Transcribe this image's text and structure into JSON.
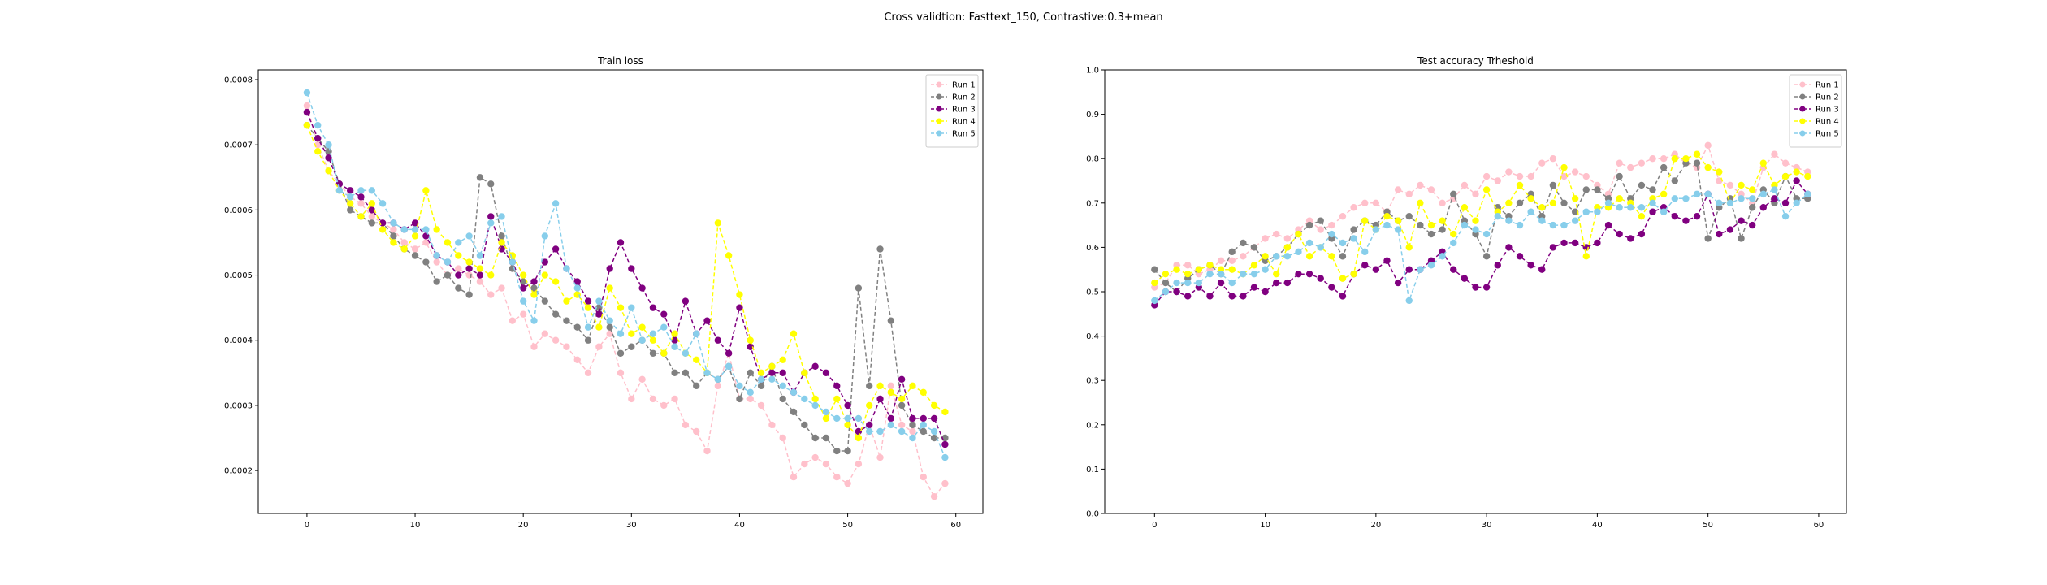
{
  "figure": {
    "suptitle": "Cross validtion: Fasttext_150, Contrastive:0.3+mean"
  },
  "chart_data": [
    {
      "type": "line",
      "title": "Train loss",
      "xlabel": "",
      "ylabel": "",
      "xlim": [
        -4.5,
        62.5
      ],
      "ylim": [
        0.000134,
        0.000815
      ],
      "xticks": [
        0,
        10,
        20,
        30,
        40,
        50,
        60
      ],
      "yticks": [
        0.0002,
        0.0003,
        0.0004,
        0.0005,
        0.0006,
        0.0007,
        0.0008
      ],
      "ytick_labels": [
        "0.0002",
        "0.0003",
        "0.0004",
        "0.0005",
        "0.0006",
        "0.0007",
        "0.0008"
      ],
      "legend_position": "top-right",
      "x": [
        0,
        1,
        2,
        3,
        4,
        5,
        6,
        7,
        8,
        9,
        10,
        11,
        12,
        13,
        14,
        15,
        16,
        17,
        18,
        19,
        20,
        21,
        22,
        23,
        24,
        25,
        26,
        27,
        28,
        29,
        30,
        31,
        32,
        33,
        34,
        35,
        36,
        37,
        38,
        39,
        40,
        41,
        42,
        43,
        44,
        45,
        46,
        47,
        48,
        49,
        50,
        51,
        52,
        53,
        54,
        55,
        56,
        57,
        58,
        59
      ],
      "series": [
        {
          "name": "Run 1",
          "color": "#ffc0cb",
          "values": [
            0.00076,
            0.0007,
            0.00066,
            0.00064,
            0.00062,
            0.00061,
            0.00059,
            0.00058,
            0.00057,
            0.00055,
            0.00054,
            0.00055,
            0.00052,
            0.0005,
            0.00051,
            0.0005,
            0.00049,
            0.00047,
            0.00048,
            0.00043,
            0.00044,
            0.00039,
            0.00041,
            0.0004,
            0.00039,
            0.00037,
            0.00035,
            0.00039,
            0.00041,
            0.00035,
            0.00031,
            0.00034,
            0.00031,
            0.0003,
            0.00031,
            0.00027,
            0.00026,
            0.00023,
            0.00033,
            0.00038,
            0.00031,
            0.00031,
            0.0003,
            0.00027,
            0.00025,
            0.00019,
            0.00021,
            0.00022,
            0.00021,
            0.00019,
            0.00018,
            0.00021,
            0.00027,
            0.00022,
            0.00033,
            0.00027,
            0.00026,
            0.00019,
            0.00016,
            0.00018
          ]
        },
        {
          "name": "Run 2",
          "color": "#808080",
          "values": [
            0.00073,
            0.00071,
            0.00069,
            0.00064,
            0.0006,
            0.00059,
            0.00058,
            0.00058,
            0.00056,
            0.00054,
            0.00053,
            0.00052,
            0.00049,
            0.0005,
            0.00048,
            0.00047,
            0.00065,
            0.00064,
            0.00056,
            0.00051,
            0.00049,
            0.00048,
            0.00046,
            0.00044,
            0.00043,
            0.00042,
            0.0004,
            0.00045,
            0.00042,
            0.00038,
            0.00039,
            0.0004,
            0.00038,
            0.00038,
            0.00035,
            0.00035,
            0.00033,
            0.00035,
            0.00034,
            0.00036,
            0.00031,
            0.00035,
            0.00033,
            0.00036,
            0.00031,
            0.00029,
            0.00027,
            0.00025,
            0.00025,
            0.00023,
            0.00023,
            0.00048,
            0.00033,
            0.00054,
            0.00043,
            0.0003,
            0.00027,
            0.00026,
            0.00025,
            0.00025
          ]
        },
        {
          "name": "Run 3",
          "color": "#800080",
          "values": [
            0.00075,
            0.00071,
            0.00068,
            0.00064,
            0.00063,
            0.00062,
            0.0006,
            0.00058,
            0.00058,
            0.00057,
            0.00058,
            0.00056,
            0.00053,
            0.00052,
            0.0005,
            0.00051,
            0.0005,
            0.00059,
            0.00054,
            0.00052,
            0.00048,
            0.00049,
            0.00052,
            0.00054,
            0.00051,
            0.00049,
            0.00046,
            0.00044,
            0.00051,
            0.00055,
            0.00051,
            0.00048,
            0.00045,
            0.00044,
            0.0004,
            0.00046,
            0.00041,
            0.00043,
            0.0004,
            0.00038,
            0.00045,
            0.00039,
            0.00034,
            0.00035,
            0.00035,
            0.00032,
            0.00035,
            0.00036,
            0.00035,
            0.00033,
            0.0003,
            0.00026,
            0.00027,
            0.00031,
            0.00028,
            0.00034,
            0.00028,
            0.00028,
            0.00028,
            0.00024
          ]
        },
        {
          "name": "Run 4",
          "color": "#ffff00",
          "values": [
            0.00073,
            0.00069,
            0.00066,
            0.00063,
            0.00061,
            0.00059,
            0.00061,
            0.00057,
            0.00055,
            0.00054,
            0.00056,
            0.00063,
            0.00057,
            0.00055,
            0.00053,
            0.00052,
            0.00051,
            0.0005,
            0.00055,
            0.00053,
            0.0005,
            0.00047,
            0.0005,
            0.00049,
            0.00046,
            0.00047,
            0.00045,
            0.00042,
            0.00048,
            0.00045,
            0.00041,
            0.00042,
            0.0004,
            0.00038,
            0.00041,
            0.00038,
            0.00037,
            0.00035,
            0.00058,
            0.00053,
            0.00047,
            0.0004,
            0.00035,
            0.00036,
            0.00037,
            0.00041,
            0.00035,
            0.00031,
            0.00028,
            0.00031,
            0.00027,
            0.00025,
            0.0003,
            0.00033,
            0.00032,
            0.00031,
            0.00033,
            0.00032,
            0.0003,
            0.00029
          ]
        },
        {
          "name": "Run 5",
          "color": "#87ceeb",
          "values": [
            0.00078,
            0.00073,
            0.0007,
            0.00063,
            0.00062,
            0.00063,
            0.00063,
            0.00061,
            0.00058,
            0.00057,
            0.00057,
            0.00057,
            0.00053,
            0.00052,
            0.00055,
            0.00056,
            0.00053,
            0.00058,
            0.00059,
            0.00052,
            0.00046,
            0.00043,
            0.00056,
            0.00061,
            0.00051,
            0.00048,
            0.00042,
            0.00046,
            0.00043,
            0.00041,
            0.00045,
            0.0004,
            0.00041,
            0.00042,
            0.00039,
            0.00038,
            0.00041,
            0.00035,
            0.00034,
            0.00036,
            0.00033,
            0.00032,
            0.00034,
            0.00034,
            0.00033,
            0.00032,
            0.00031,
            0.0003,
            0.00029,
            0.00028,
            0.00028,
            0.00028,
            0.00026,
            0.00026,
            0.00027,
            0.00026,
            0.00025,
            0.00027,
            0.00026,
            0.00022
          ]
        }
      ]
    },
    {
      "type": "line",
      "title": "Test accuracy Trheshold",
      "xlabel": "",
      "ylabel": "",
      "xlim": [
        -4.5,
        62.5
      ],
      "ylim": [
        0.0,
        1.0
      ],
      "xticks": [
        0,
        10,
        20,
        30,
        40,
        50,
        60
      ],
      "yticks": [
        0.0,
        0.1,
        0.2,
        0.3,
        0.4,
        0.5,
        0.6,
        0.7,
        0.8,
        0.9,
        1.0
      ],
      "ytick_labels": [
        "0.0",
        "0.1",
        "0.2",
        "0.3",
        "0.4",
        "0.5",
        "0.6",
        "0.7",
        "0.8",
        "0.9",
        "1.0"
      ],
      "legend_position": "top-right",
      "x": [
        0,
        1,
        2,
        3,
        4,
        5,
        6,
        7,
        8,
        9,
        10,
        11,
        12,
        13,
        14,
        15,
        16,
        17,
        18,
        19,
        20,
        21,
        22,
        23,
        24,
        25,
        26,
        27,
        28,
        29,
        30,
        31,
        32,
        33,
        34,
        35,
        36,
        37,
        38,
        39,
        40,
        41,
        42,
        43,
        44,
        45,
        46,
        47,
        48,
        49,
        50,
        51,
        52,
        53,
        54,
        55,
        56,
        57,
        58,
        59
      ],
      "series": [
        {
          "name": "Run 1",
          "color": "#ffc0cb",
          "values": [
            0.51,
            0.52,
            0.56,
            0.56,
            0.54,
            0.55,
            0.57,
            0.57,
            0.58,
            0.6,
            0.62,
            0.63,
            0.62,
            0.64,
            0.66,
            0.64,
            0.65,
            0.67,
            0.69,
            0.7,
            0.7,
            0.68,
            0.73,
            0.72,
            0.74,
            0.73,
            0.7,
            0.71,
            0.74,
            0.72,
            0.76,
            0.75,
            0.77,
            0.76,
            0.76,
            0.79,
            0.8,
            0.76,
            0.77,
            0.76,
            0.74,
            0.72,
            0.79,
            0.78,
            0.79,
            0.8,
            0.8,
            0.81,
            0.79,
            0.78,
            0.83,
            0.75,
            0.74,
            0.72,
            0.7,
            0.78,
            0.81,
            0.79,
            0.78,
            0.77
          ]
        },
        {
          "name": "Run 2",
          "color": "#808080",
          "values": [
            0.55,
            0.52,
            0.5,
            0.53,
            0.55,
            0.56,
            0.54,
            0.59,
            0.61,
            0.6,
            0.57,
            0.58,
            0.6,
            0.63,
            0.65,
            0.66,
            0.62,
            0.58,
            0.64,
            0.66,
            0.65,
            0.68,
            0.66,
            0.67,
            0.65,
            0.63,
            0.64,
            0.72,
            0.66,
            0.63,
            0.58,
            0.69,
            0.67,
            0.7,
            0.72,
            0.67,
            0.74,
            0.7,
            0.68,
            0.73,
            0.73,
            0.71,
            0.76,
            0.71,
            0.74,
            0.73,
            0.78,
            0.75,
            0.79,
            0.79,
            0.62,
            0.69,
            0.71,
            0.62,
            0.69,
            0.73,
            0.7,
            0.76,
            0.71,
            0.71
          ]
        },
        {
          "name": "Run 3",
          "color": "#800080",
          "values": [
            0.47,
            0.5,
            0.5,
            0.49,
            0.51,
            0.49,
            0.52,
            0.49,
            0.49,
            0.51,
            0.5,
            0.52,
            0.52,
            0.54,
            0.54,
            0.53,
            0.51,
            0.49,
            0.54,
            0.56,
            0.55,
            0.57,
            0.52,
            0.55,
            0.55,
            0.57,
            0.59,
            0.55,
            0.53,
            0.51,
            0.51,
            0.56,
            0.6,
            0.58,
            0.56,
            0.55,
            0.6,
            0.61,
            0.61,
            0.6,
            0.61,
            0.65,
            0.63,
            0.62,
            0.63,
            0.68,
            0.69,
            0.67,
            0.66,
            0.67,
            0.72,
            0.63,
            0.64,
            0.66,
            0.65,
            0.69,
            0.71,
            0.7,
            0.75,
            0.72
          ]
        },
        {
          "name": "Run 4",
          "color": "#ffff00",
          "values": [
            0.52,
            0.54,
            0.55,
            0.54,
            0.55,
            0.56,
            0.55,
            0.55,
            0.54,
            0.56,
            0.58,
            0.54,
            0.6,
            0.63,
            0.58,
            0.6,
            0.58,
            0.53,
            0.54,
            0.66,
            0.64,
            0.67,
            0.66,
            0.6,
            0.7,
            0.65,
            0.66,
            0.63,
            0.69,
            0.66,
            0.73,
            0.68,
            0.7,
            0.74,
            0.71,
            0.69,
            0.7,
            0.78,
            0.71,
            0.58,
            0.69,
            0.69,
            0.71,
            0.7,
            0.67,
            0.71,
            0.72,
            0.8,
            0.8,
            0.81,
            0.78,
            0.77,
            0.7,
            0.74,
            0.73,
            0.79,
            0.74,
            0.76,
            0.77,
            0.76
          ]
        },
        {
          "name": "Run 5",
          "color": "#87ceeb",
          "values": [
            0.48,
            0.5,
            0.52,
            0.52,
            0.52,
            0.54,
            0.54,
            0.52,
            0.54,
            0.54,
            0.55,
            0.58,
            0.58,
            0.59,
            0.61,
            0.6,
            0.63,
            0.61,
            0.62,
            0.59,
            0.64,
            0.65,
            0.64,
            0.48,
            0.55,
            0.56,
            0.58,
            0.61,
            0.65,
            0.64,
            0.63,
            0.67,
            0.66,
            0.65,
            0.68,
            0.66,
            0.65,
            0.65,
            0.66,
            0.68,
            0.68,
            0.7,
            0.69,
            0.69,
            0.69,
            0.7,
            0.68,
            0.71,
            0.71,
            0.72,
            0.72,
            0.7,
            0.7,
            0.71,
            0.71,
            0.72,
            0.73,
            0.67,
            0.7,
            0.72
          ]
        }
      ]
    }
  ]
}
